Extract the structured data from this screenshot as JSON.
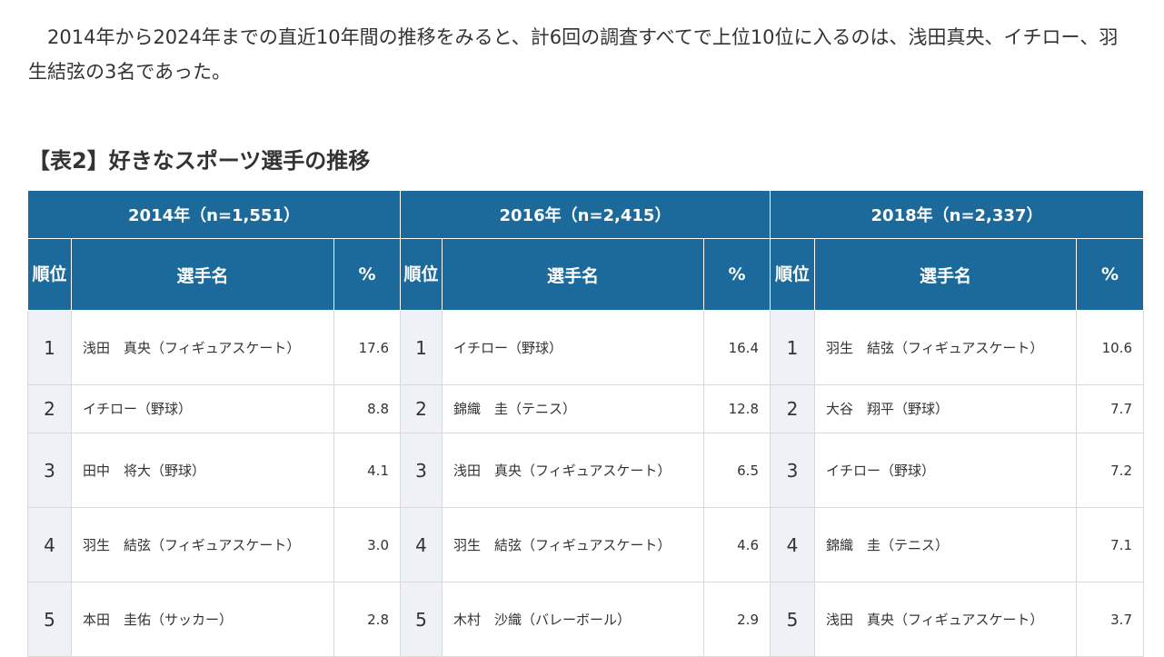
{
  "intro": "2014年から2024年までの直近10年間の推移をみると、計6回の調査すべてで上位10位に入るのは、浅田真央、イチロー、羽生結弦の3名であった。",
  "caption": "【表2】好きなスポーツ選手の推移",
  "table": {
    "rank_header": "順位",
    "name_header": "選手名",
    "pct_header": "%",
    "years": [
      {
        "label": "2014年（n=1,551）",
        "rows": [
          {
            "rank": "1",
            "name": "浅田　真央（フィギュアスケート）",
            "pct": "17.6"
          },
          {
            "rank": "2",
            "name": "イチロー（野球）",
            "pct": "8.8"
          },
          {
            "rank": "3",
            "name": "田中　将大（野球）",
            "pct": "4.1"
          },
          {
            "rank": "4",
            "name": "羽生　結弦（フィギュアスケート）",
            "pct": "3.0"
          },
          {
            "rank": "5",
            "name": "本田　圭佑（サッカー）",
            "pct": "2.8"
          }
        ]
      },
      {
        "label": "2016年（n=2,415）",
        "rows": [
          {
            "rank": "1",
            "name": "イチロー（野球）",
            "pct": "16.4"
          },
          {
            "rank": "2",
            "name": "錦織　圭（テニス）",
            "pct": "12.8"
          },
          {
            "rank": "3",
            "name": "浅田　真央（フィギュアスケート）",
            "pct": "6.5"
          },
          {
            "rank": "4",
            "name": "羽生　結弦（フィギュアスケート）",
            "pct": "4.6"
          },
          {
            "rank": "5",
            "name": "木村　沙織（バレーボール）",
            "pct": "2.9"
          }
        ]
      },
      {
        "label": "2018年（n=2,337）",
        "rows": [
          {
            "rank": "1",
            "name": "羽生　結弦（フィギュアスケート）",
            "pct": "10.6"
          },
          {
            "rank": "2",
            "name": "大谷　翔平（野球）",
            "pct": "7.7"
          },
          {
            "rank": "3",
            "name": "イチロー（野球）",
            "pct": "7.2"
          },
          {
            "rank": "4",
            "name": "錦織　圭（テニス）",
            "pct": "7.1"
          },
          {
            "rank": "5",
            "name": "浅田　真央（フィギュアスケート）",
            "pct": "3.7"
          }
        ]
      }
    ]
  }
}
